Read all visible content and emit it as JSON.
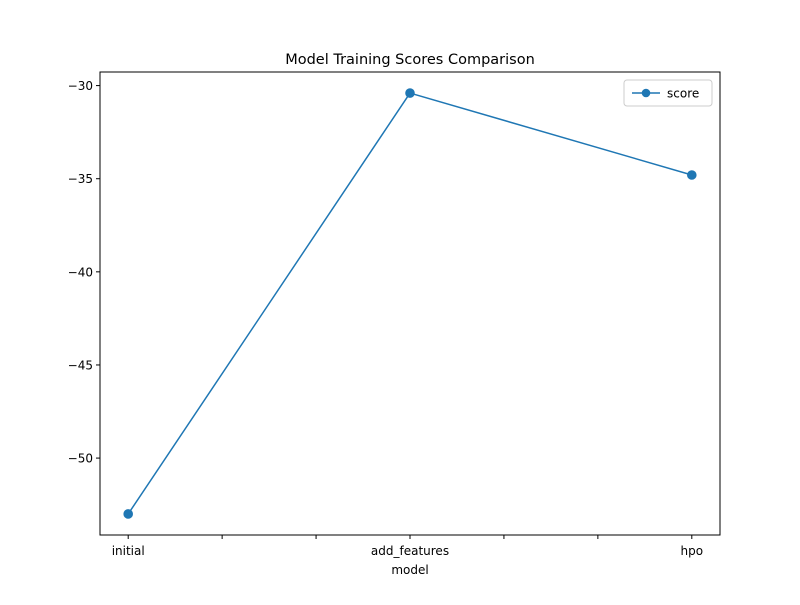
{
  "chart_data": {
    "type": "line",
    "title": "Model Training Scores Comparison",
    "xlabel": "model",
    "ylabel": "",
    "categories": [
      "initial",
      "add_features",
      "hpo"
    ],
    "series": [
      {
        "name": "score",
        "values": [
          -53.0,
          -30.4,
          -34.8
        ],
        "color": "#1f77b4",
        "marker": "circle"
      }
    ],
    "x_tick_labels": [
      "initial",
      "",
      "",
      "add_features",
      "",
      "",
      "hpo"
    ],
    "y_ticks": [
      -30,
      -35,
      -40,
      -45,
      -50
    ],
    "y_tick_labels": [
      "−30",
      "−35",
      "−40",
      "−45",
      "−50"
    ],
    "ylim": [
      -54.13,
      -29.27
    ],
    "grid": false,
    "legend": {
      "position": "top-right",
      "entries": [
        "score"
      ]
    }
  }
}
